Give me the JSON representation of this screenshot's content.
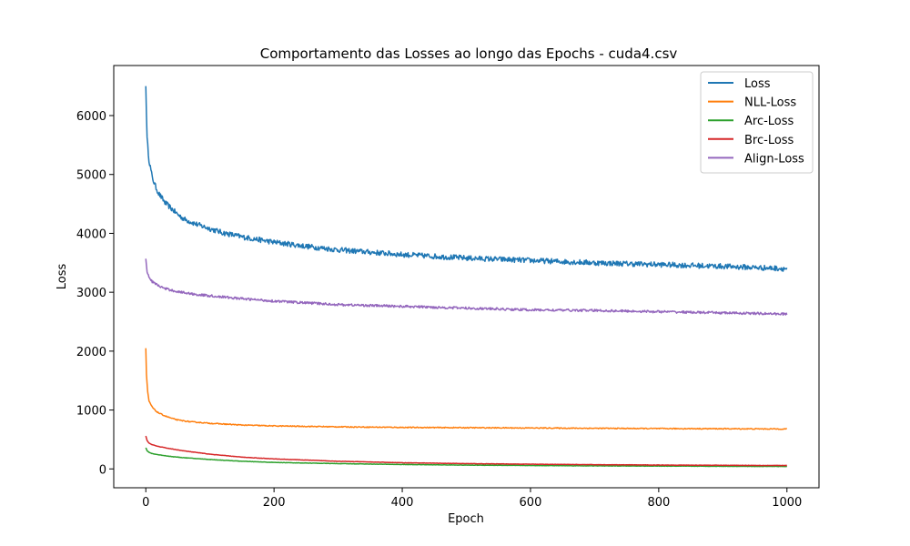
{
  "chart_data": {
    "type": "line",
    "title": "Comportamento das Losses ao longo das Epochs - cuda4.csv",
    "xlabel": "Epoch",
    "ylabel": "Loss",
    "xlim": [
      -50,
      1050
    ],
    "ylim": [
      -320,
      6850
    ],
    "xticks": [
      0,
      200,
      400,
      600,
      800,
      1000
    ],
    "yticks": [
      0,
      1000,
      2000,
      3000,
      4000,
      5000,
      6000
    ],
    "grid": false,
    "legend_position": "top-right",
    "series": [
      {
        "name": "Loss",
        "color": "#1f77b4",
        "noise": 45,
        "x": [
          0,
          2,
          5,
          10,
          15,
          20,
          30,
          40,
          50,
          60,
          80,
          100,
          120,
          150,
          200,
          250,
          300,
          350,
          400,
          450,
          500,
          600,
          700,
          800,
          900,
          1000
        ],
        "y": [
          6500,
          5600,
          5250,
          4950,
          4800,
          4680,
          4520,
          4420,
          4320,
          4240,
          4150,
          4080,
          4010,
          3940,
          3850,
          3780,
          3720,
          3680,
          3640,
          3610,
          3580,
          3540,
          3500,
          3470,
          3440,
          3400
        ]
      },
      {
        "name": "NLL-Loss",
        "color": "#ff7f0e",
        "noise": 8,
        "x": [
          0,
          1,
          3,
          5,
          10,
          15,
          20,
          30,
          40,
          50,
          70,
          100,
          150,
          200,
          300,
          400,
          500,
          600,
          700,
          800,
          900,
          1000
        ],
        "y": [
          2050,
          1600,
          1300,
          1150,
          1050,
          990,
          950,
          900,
          860,
          830,
          800,
          775,
          745,
          730,
          715,
          705,
          700,
          695,
          690,
          685,
          682,
          678
        ]
      },
      {
        "name": "Arc-Loss",
        "color": "#2ca02c",
        "noise": 3,
        "x": [
          0,
          2,
          5,
          10,
          20,
          40,
          60,
          100,
          150,
          200,
          300,
          400,
          500,
          600,
          700,
          800,
          900,
          1000
        ],
        "y": [
          360,
          310,
          280,
          260,
          240,
          210,
          190,
          160,
          130,
          110,
          90,
          75,
          65,
          58,
          52,
          48,
          45,
          42
        ]
      },
      {
        "name": "Brc-Loss",
        "color": "#d62728",
        "noise": 3,
        "x": [
          0,
          2,
          5,
          10,
          20,
          40,
          60,
          100,
          150,
          200,
          300,
          400,
          500,
          600,
          700,
          800,
          900,
          1000
        ],
        "y": [
          560,
          480,
          440,
          410,
          380,
          340,
          305,
          250,
          200,
          170,
          130,
          105,
          90,
          80,
          72,
          66,
          62,
          58
        ]
      },
      {
        "name": "Align-Loss",
        "color": "#9467bd",
        "noise": 20,
        "x": [
          0,
          2,
          5,
          10,
          20,
          30,
          50,
          80,
          100,
          150,
          200,
          300,
          400,
          500,
          600,
          700,
          800,
          900,
          1000
        ],
        "y": [
          3570,
          3350,
          3250,
          3180,
          3110,
          3060,
          3010,
          2960,
          2940,
          2890,
          2850,
          2790,
          2760,
          2730,
          2700,
          2690,
          2670,
          2650,
          2630
        ]
      }
    ]
  }
}
